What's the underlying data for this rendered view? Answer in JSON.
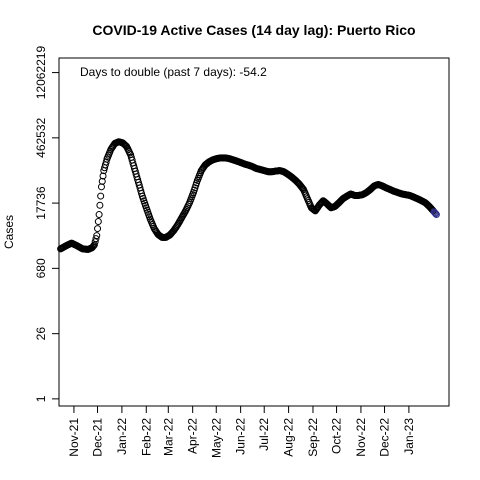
{
  "chart_data": {
    "type": "scatter",
    "title": "COVID-19 Active Cases (14 day lag): Puerto Rico",
    "annotation": "Days to double (past 7 days): -54.2",
    "xlabel": "",
    "ylabel": "Cases",
    "y_scale": "log",
    "y_ticks": [
      1,
      26,
      680,
      17736,
      462532,
      12062219
    ],
    "y_range": [
      0.7,
      25000000
    ],
    "x_ticks": [
      "Nov-21",
      "Dec-21",
      "Jan-22",
      "Feb-22",
      "Mar-22",
      "Apr-22",
      "May-22",
      "Jun-22",
      "Jul-22",
      "Aug-22",
      "Sep-22",
      "Oct-22",
      "Nov-22",
      "Dec-22",
      "Jan-23"
    ],
    "x_tick_dates": [
      "2021-11-01",
      "2021-12-01",
      "2022-01-01",
      "2022-02-01",
      "2022-03-01",
      "2022-04-01",
      "2022-05-01",
      "2022-06-01",
      "2022-07-01",
      "2022-08-01",
      "2022-09-01",
      "2022-10-01",
      "2022-11-01",
      "2022-12-01",
      "2023-01-01"
    ],
    "x_range": [
      "2021-10-13",
      "2023-02-21"
    ],
    "grid": false,
    "series": [
      {
        "marker": "open-circle",
        "color": "#000000",
        "last_point_color": "#2d2d8a",
        "x": [
          "2021-10-15",
          "2021-10-22",
          "2021-10-29",
          "2021-11-05",
          "2021-11-12",
          "2021-11-19",
          "2021-11-24",
          "2021-11-27",
          "2021-11-30",
          "2021-12-03",
          "2021-12-06",
          "2021-12-09",
          "2021-12-13",
          "2021-12-18",
          "2021-12-23",
          "2021-12-28",
          "2022-01-02",
          "2022-01-07",
          "2022-01-12",
          "2022-01-17",
          "2022-01-22",
          "2022-01-27",
          "2022-02-01",
          "2022-02-06",
          "2022-02-11",
          "2022-02-16",
          "2022-02-21",
          "2022-02-26",
          "2022-03-03",
          "2022-03-08",
          "2022-03-13",
          "2022-03-18",
          "2022-03-23",
          "2022-03-28",
          "2022-04-02",
          "2022-04-07",
          "2022-04-12",
          "2022-04-17",
          "2022-04-22",
          "2022-04-27",
          "2022-05-02",
          "2022-05-07",
          "2022-05-12",
          "2022-05-17",
          "2022-05-22",
          "2022-05-27",
          "2022-06-01",
          "2022-06-06",
          "2022-06-11",
          "2022-06-16",
          "2022-06-21",
          "2022-06-26",
          "2022-07-01",
          "2022-07-06",
          "2022-07-11",
          "2022-07-16",
          "2022-07-21",
          "2022-07-26",
          "2022-07-31",
          "2022-08-05",
          "2022-08-10",
          "2022-08-15",
          "2022-08-20",
          "2022-08-25",
          "2022-08-30",
          "2022-09-04",
          "2022-09-09",
          "2022-09-14",
          "2022-09-19",
          "2022-09-24",
          "2022-09-29",
          "2022-10-04",
          "2022-10-09",
          "2022-10-14",
          "2022-10-19",
          "2022-10-24",
          "2022-10-29",
          "2022-11-03",
          "2022-11-08",
          "2022-11-13",
          "2022-11-18",
          "2022-11-23",
          "2022-11-28",
          "2022-12-03",
          "2022-12-08",
          "2022-12-13",
          "2022-12-18",
          "2022-12-23",
          "2022-12-28",
          "2023-01-02",
          "2023-01-07",
          "2023-01-12",
          "2023-01-17",
          "2023-01-22",
          "2023-01-27",
          "2023-02-01",
          "2023-02-05"
        ],
        "y": [
          1800,
          2100,
          2400,
          2100,
          1800,
          1750,
          1900,
          2200,
          3500,
          10000,
          40000,
          90000,
          160000,
          260000,
          350000,
          380000,
          360000,
          300000,
          200000,
          100000,
          50000,
          25000,
          14000,
          8000,
          5000,
          3700,
          3200,
          3200,
          3600,
          4500,
          6000,
          8500,
          12000,
          18000,
          30000,
          55000,
          90000,
          120000,
          140000,
          155000,
          165000,
          170000,
          170000,
          165000,
          155000,
          145000,
          135000,
          125000,
          118000,
          110000,
          100000,
          95000,
          90000,
          85000,
          85000,
          88000,
          90000,
          85000,
          75000,
          65000,
          55000,
          45000,
          35000,
          22000,
          14000,
          12000,
          16000,
          20000,
          17000,
          14000,
          15000,
          18000,
          22000,
          25000,
          28000,
          26000,
          26000,
          27000,
          30000,
          35000,
          42000,
          45000,
          42000,
          38000,
          35000,
          32000,
          30000,
          28000,
          27000,
          26000,
          24000,
          22000,
          20000,
          18000,
          15000,
          12000,
          10000
        ]
      }
    ]
  }
}
